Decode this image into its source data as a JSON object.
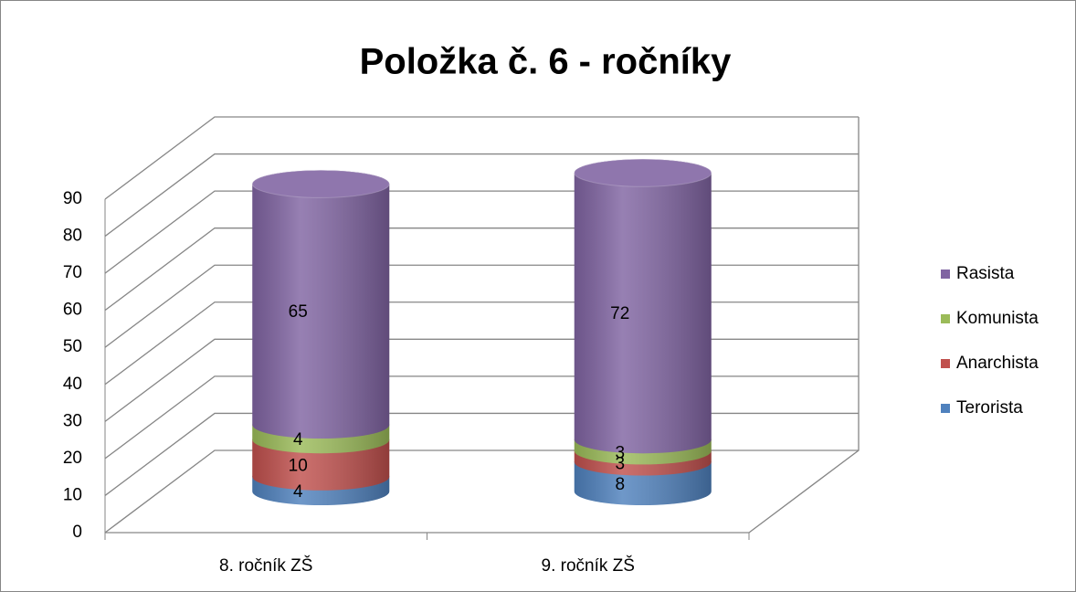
{
  "chart_data": {
    "type": "bar3d_cylinder_stacked",
    "title": "Položka č. 6 - ročníky",
    "categories": [
      "8. ročník ZŠ",
      "9. ročník ZŠ"
    ],
    "series": [
      {
        "name": "Terorista",
        "color": "#4f81bd",
        "values": [
          4,
          8
        ]
      },
      {
        "name": "Anarchista",
        "color": "#c0504d",
        "values": [
          10,
          3
        ]
      },
      {
        "name": "Komunista",
        "color": "#9bbb59",
        "values": [
          4,
          3
        ]
      },
      {
        "name": "Rasista",
        "color": "#8064a2",
        "values": [
          65,
          72
        ]
      }
    ],
    "ylim": [
      0,
      90
    ],
    "yticks": [
      0,
      10,
      20,
      30,
      40,
      50,
      60,
      70,
      80,
      90
    ],
    "grid": true,
    "legend": "right"
  }
}
